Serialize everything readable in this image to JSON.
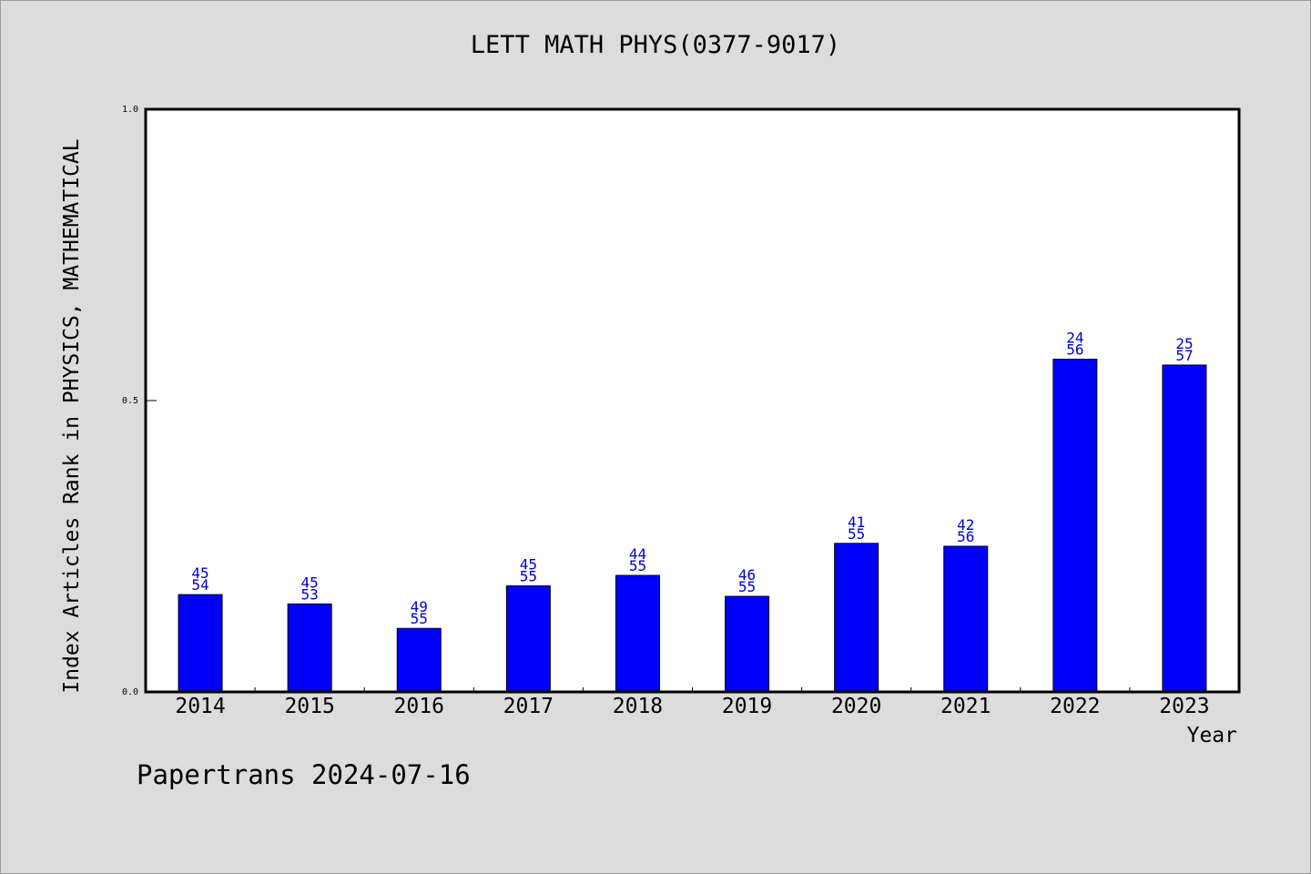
{
  "title": "LETT MATH PHYS(0377-9017)",
  "footer": "Papertrans 2024-07-16",
  "colors": {
    "bar": "#0000ff",
    "label": "#0000cc",
    "background": "#dcdcdc",
    "plot_area": "#ffffff"
  },
  "chart_data": {
    "type": "bar",
    "title": "LETT MATH PHYS(0377-9017)",
    "xlabel": "Year",
    "ylabel": "Index Articles Rank in PHYSICS, MATHEMATICAL",
    "ylim": [
      0,
      1
    ],
    "yticks": [
      "0.0",
      "0.5",
      "1.0"
    ],
    "ytick_values": [
      0,
      0.5,
      1.0
    ],
    "grid": false,
    "categories": [
      "2014",
      "2015",
      "2016",
      "2017",
      "2018",
      "2019",
      "2020",
      "2021",
      "2022",
      "2023"
    ],
    "values": [
      0.167,
      0.151,
      0.109,
      0.182,
      0.2,
      0.164,
      0.255,
      0.25,
      0.571,
      0.561
    ],
    "annotations": [
      [
        "45",
        "54"
      ],
      [
        "45",
        "53"
      ],
      [
        "49",
        "55"
      ],
      [
        "45",
        "55"
      ],
      [
        "44",
        "55"
      ],
      [
        "46",
        "55"
      ],
      [
        "41",
        "55"
      ],
      [
        "42",
        "56"
      ],
      [
        "24",
        "56"
      ],
      [
        "25",
        "57"
      ]
    ]
  }
}
